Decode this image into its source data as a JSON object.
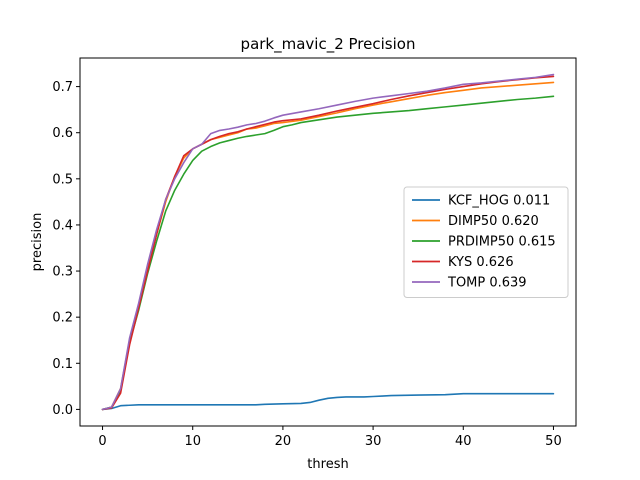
{
  "chart_data": {
    "type": "line",
    "title": "park_mavic_2 Precision",
    "xlabel": "thresh",
    "ylabel": "precision",
    "xlim": [
      -2.5,
      52.5
    ],
    "ylim": [
      -0.036,
      0.762
    ],
    "xticks": [
      0,
      10,
      20,
      30,
      40,
      50
    ],
    "xtick_labels": [
      "0",
      "10",
      "20",
      "30",
      "40",
      "50"
    ],
    "yticks": [
      0.0,
      0.1,
      0.2,
      0.3,
      0.4,
      0.5,
      0.6,
      0.7
    ],
    "ytick_labels": [
      "0.0",
      "0.1",
      "0.2",
      "0.3",
      "0.4",
      "0.5",
      "0.6",
      "0.7"
    ],
    "grid": false,
    "legend_position": "center-right",
    "series": [
      {
        "name": "KCF_HOG 0.011",
        "color": "#1f77b4",
        "x": [
          0,
          1,
          2,
          3,
          4,
          5,
          8,
          10,
          15,
          17,
          18,
          20,
          22,
          23,
          24,
          25,
          26,
          27,
          29,
          30,
          31,
          32,
          35,
          38,
          39,
          40,
          50
        ],
        "y": [
          0,
          0.002,
          0.008,
          0.009,
          0.01,
          0.01,
          0.01,
          0.01,
          0.01,
          0.01,
          0.011,
          0.012,
          0.013,
          0.015,
          0.02,
          0.024,
          0.026,
          0.027,
          0.027,
          0.028,
          0.029,
          0.03,
          0.031,
          0.032,
          0.033,
          0.034,
          0.034
        ]
      },
      {
        "name": "DIMP50 0.620",
        "color": "#ff7f0e",
        "x": [
          0,
          1,
          2,
          3,
          4,
          5,
          6,
          7,
          8,
          9,
          10,
          11,
          12,
          13,
          14,
          15,
          16,
          17,
          18,
          19,
          20,
          22,
          24,
          26,
          28,
          30,
          32,
          34,
          36,
          38,
          40,
          42,
          44,
          46,
          48,
          50
        ],
        "y": [
          0,
          0.005,
          0.045,
          0.15,
          0.22,
          0.305,
          0.38,
          0.45,
          0.505,
          0.545,
          0.565,
          0.575,
          0.585,
          0.59,
          0.595,
          0.6,
          0.608,
          0.61,
          0.615,
          0.62,
          0.622,
          0.627,
          0.635,
          0.643,
          0.652,
          0.66,
          0.667,
          0.674,
          0.681,
          0.687,
          0.692,
          0.697,
          0.7,
          0.703,
          0.706,
          0.709
        ]
      },
      {
        "name": "PRDIMP50 0.615",
        "color": "#2ca02c",
        "x": [
          0,
          1,
          2,
          3,
          4,
          5,
          6,
          7,
          8,
          9,
          10,
          11,
          12,
          13,
          14,
          15,
          16,
          17,
          18,
          19,
          20,
          21,
          22,
          24,
          26,
          28,
          30,
          32,
          34,
          36,
          38,
          40,
          42,
          44,
          46,
          48,
          50
        ],
        "y": [
          0,
          0.005,
          0.04,
          0.145,
          0.215,
          0.295,
          0.365,
          0.43,
          0.475,
          0.51,
          0.54,
          0.56,
          0.57,
          0.578,
          0.583,
          0.588,
          0.592,
          0.595,
          0.598,
          0.605,
          0.613,
          0.617,
          0.622,
          0.628,
          0.634,
          0.638,
          0.642,
          0.645,
          0.648,
          0.652,
          0.656,
          0.66,
          0.664,
          0.668,
          0.672,
          0.675,
          0.679
        ]
      },
      {
        "name": "KYS 0.626",
        "color": "#d62728",
        "x": [
          0,
          1,
          2,
          3,
          4,
          5,
          6,
          7,
          8,
          9,
          10,
          11,
          12,
          13,
          14,
          15,
          16,
          17,
          18,
          19,
          20,
          22,
          24,
          26,
          28,
          30,
          32,
          34,
          36,
          38,
          40,
          42,
          44,
          46,
          48,
          50
        ],
        "y": [
          0,
          0.003,
          0.035,
          0.14,
          0.22,
          0.3,
          0.38,
          0.455,
          0.505,
          0.55,
          0.565,
          0.575,
          0.585,
          0.592,
          0.598,
          0.602,
          0.608,
          0.613,
          0.618,
          0.623,
          0.626,
          0.63,
          0.638,
          0.647,
          0.655,
          0.663,
          0.672,
          0.68,
          0.687,
          0.694,
          0.7,
          0.706,
          0.711,
          0.715,
          0.719,
          0.722
        ]
      },
      {
        "name": "TOMP 0.639",
        "color": "#9467bd",
        "x": [
          0,
          1,
          2,
          3,
          4,
          5,
          6,
          7,
          8,
          9,
          10,
          11,
          12,
          13,
          14,
          15,
          16,
          17,
          18,
          19,
          20,
          22,
          24,
          26,
          28,
          30,
          32,
          34,
          36,
          38,
          40,
          42,
          44,
          46,
          48,
          50
        ],
        "y": [
          0,
          0.005,
          0.045,
          0.155,
          0.23,
          0.315,
          0.39,
          0.455,
          0.5,
          0.535,
          0.565,
          0.575,
          0.598,
          0.605,
          0.608,
          0.612,
          0.617,
          0.62,
          0.625,
          0.632,
          0.638,
          0.645,
          0.652,
          0.66,
          0.668,
          0.675,
          0.68,
          0.685,
          0.69,
          0.697,
          0.705,
          0.708,
          0.712,
          0.716,
          0.72,
          0.726
        ]
      }
    ]
  }
}
